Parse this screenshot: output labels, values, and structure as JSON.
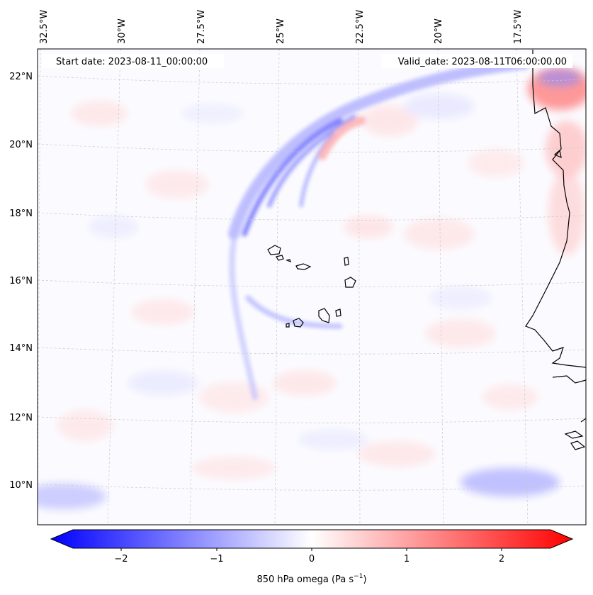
{
  "header": {
    "start_date": "Start date: 2023-08-11_00:00:00",
    "valid_date": "Valid_date: 2023-08-11T06:00:00.00"
  },
  "map": {
    "longitude_labels": [
      "32.5°W",
      "30°W",
      "27.5°W",
      "25°W",
      "22.5°W",
      "20°W",
      "17.5°W"
    ],
    "latitude_labels": [
      "22°N",
      "20°N",
      "18°N",
      "16°N",
      "14°N",
      "12°N",
      "10°N"
    ],
    "gridlines": true,
    "field_colors": {
      "negative": "#0000ff",
      "neutral": "#ffffff",
      "positive": "#ff0000"
    }
  },
  "colorbar": {
    "ticks": [
      "−2",
      "−1",
      "0",
      "1",
      "2"
    ],
    "label": "850 hPa omega (Pa s",
    "label_sup": "−1",
    "label_close": ")",
    "range": [
      -2.6,
      2.6
    ]
  }
}
